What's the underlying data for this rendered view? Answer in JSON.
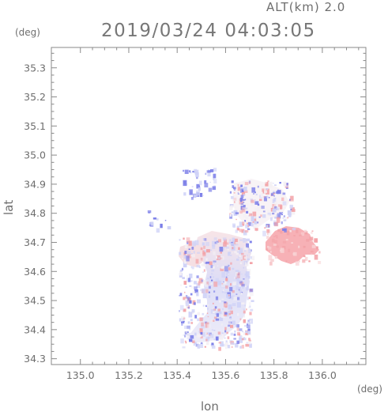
{
  "header": {
    "altitude_label": "ALT(km)  2.0",
    "timestamp": "2019/03/24  04:03:05"
  },
  "axes": {
    "y_unit": "(deg)",
    "x_unit": "(deg)",
    "x_label": "lon",
    "y_label": "lat"
  },
  "chart_data": {
    "type": "heatmap",
    "xlabel": "lon",
    "ylabel": "lat",
    "xlim": [
      134.88,
      136.18
    ],
    "ylim": [
      34.28,
      35.37
    ],
    "x_ticks": [
      "135.0",
      "135.2",
      "135.4",
      "135.6",
      "135.8",
      "136.0"
    ],
    "x_tick_values": [
      135.0,
      135.2,
      135.4,
      135.6,
      135.8,
      136.0
    ],
    "y_ticks": [
      "34.3",
      "34.4",
      "34.5",
      "34.6",
      "34.7",
      "34.8",
      "34.9",
      "35.0",
      "35.1",
      "35.2",
      "35.3"
    ],
    "y_tick_values": [
      34.3,
      34.4,
      34.5,
      34.6,
      34.7,
      34.8,
      34.9,
      35.0,
      35.1,
      35.2,
      35.3
    ],
    "colors": {
      "positive": "#f3a3a8",
      "positive_light": "#f8d4d6",
      "negative": "#7b7ee8",
      "negative_light": "#cfd2f7",
      "neutral": "#f4f0f4"
    }
  }
}
